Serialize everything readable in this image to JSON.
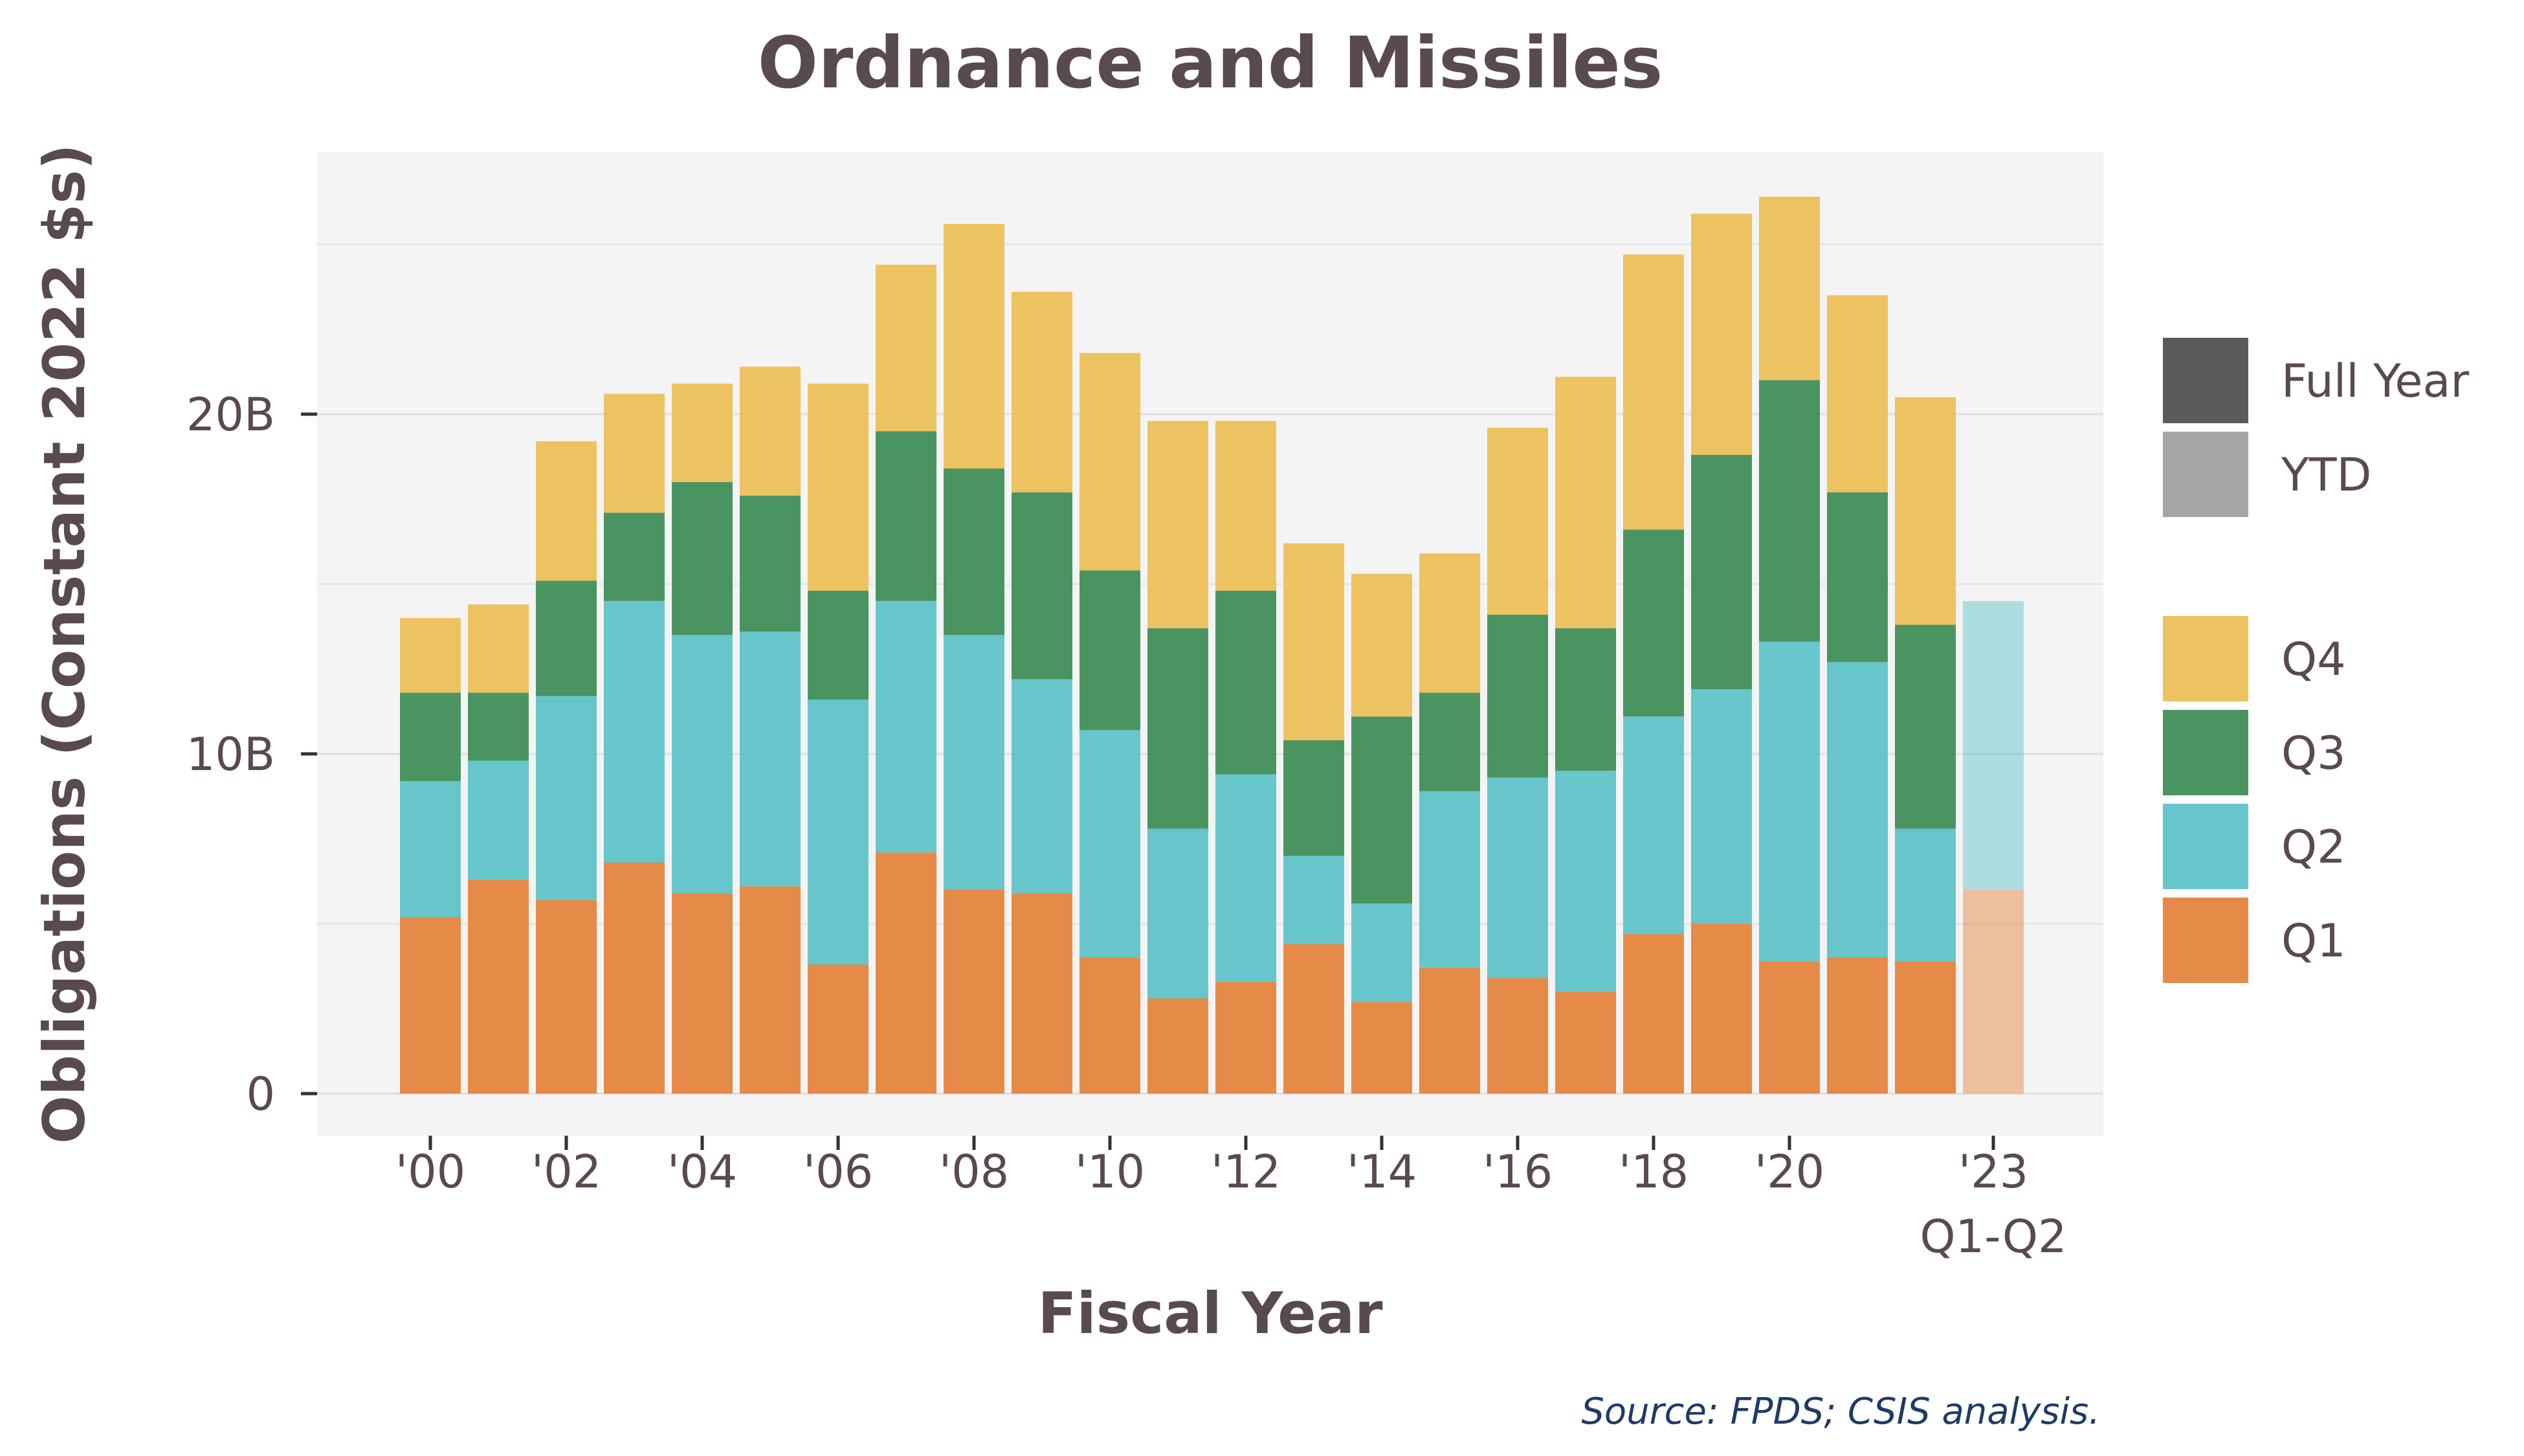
{
  "chart_data": {
    "type": "bar",
    "stacked": true,
    "title": "Ordnance and Missiles",
    "xlabel": "Fiscal Year",
    "ylabel": "Obligations (Constant 2022 $s)",
    "source": "Source: FPDS; CSIS analysis.",
    "ylim": [
      0,
      27.5
    ],
    "y_ticks": [
      0,
      10,
      20
    ],
    "y_tick_labels": [
      "0",
      "10B",
      "20B"
    ],
    "x_tick_labels": [
      {
        "label": "'00",
        "year": 2000
      },
      {
        "label": "'02",
        "year": 2002
      },
      {
        "label": "'04",
        "year": 2004
      },
      {
        "label": "'06",
        "year": 2006
      },
      {
        "label": "'08",
        "year": 2008
      },
      {
        "label": "'10",
        "year": 2010
      },
      {
        "label": "'12",
        "year": 2012
      },
      {
        "label": "'14",
        "year": 2014
      },
      {
        "label": "'16",
        "year": 2016
      },
      {
        "label": "'18",
        "year": 2018
      },
      {
        "label": "'20",
        "year": 2020
      },
      {
        "label": "'23",
        "sublabel": "Q1-Q2",
        "year": 2023
      }
    ],
    "grid": true,
    "legend_position": "right",
    "categories": [
      2000,
      2001,
      2002,
      2003,
      2004,
      2005,
      2006,
      2007,
      2008,
      2009,
      2010,
      2011,
      2012,
      2013,
      2014,
      2015,
      2016,
      2017,
      2018,
      2019,
      2020,
      2021,
      2022,
      2023
    ],
    "period": [
      "Full Year",
      "Full Year",
      "Full Year",
      "Full Year",
      "Full Year",
      "Full Year",
      "Full Year",
      "Full Year",
      "Full Year",
      "Full Year",
      "Full Year",
      "Full Year",
      "Full Year",
      "Full Year",
      "Full Year",
      "Full Year",
      "Full Year",
      "Full Year",
      "Full Year",
      "Full Year",
      "Full Year",
      "Full Year",
      "Full Year",
      "YTD"
    ],
    "series": [
      {
        "name": "Q1",
        "color": "#e58a47",
        "values": [
          5.2,
          6.3,
          5.7,
          6.8,
          5.9,
          6.1,
          3.8,
          7.1,
          6.0,
          5.9,
          4.0,
          2.8,
          3.3,
          4.4,
          2.7,
          3.7,
          3.4,
          3.0,
          4.7,
          5.0,
          3.9,
          4.0,
          3.9,
          6.0
        ]
      },
      {
        "name": "Q2",
        "color": "#67c6cc",
        "values": [
          4.0,
          3.5,
          6.0,
          7.7,
          7.6,
          7.5,
          7.8,
          7.4,
          7.5,
          6.3,
          6.7,
          5.0,
          6.1,
          2.6,
          2.9,
          5.2,
          5.9,
          6.5,
          6.4,
          6.9,
          9.4,
          8.7,
          3.9,
          8.5
        ]
      },
      {
        "name": "Q3",
        "color": "#4a9461",
        "values": [
          2.6,
          2.0,
          3.4,
          2.6,
          4.5,
          4.0,
          3.2,
          5.0,
          4.9,
          5.5,
          4.7,
          5.9,
          5.4,
          3.4,
          5.5,
          2.9,
          4.8,
          4.2,
          5.5,
          6.9,
          7.7,
          5.0,
          6.0,
          0
        ]
      },
      {
        "name": "Q4",
        "color": "#edc261",
        "values": [
          2.2,
          2.6,
          4.1,
          3.5,
          2.9,
          3.8,
          6.1,
          4.9,
          7.2,
          5.9,
          6.4,
          6.1,
          5.0,
          5.8,
          4.2,
          4.1,
          5.5,
          7.4,
          8.1,
          7.1,
          5.4,
          5.8,
          6.7,
          0
        ]
      }
    ],
    "legend_period": [
      {
        "name": "Full Year",
        "color": "#5a5a5a"
      },
      {
        "name": "YTD",
        "color": "#a5a5a5"
      }
    ],
    "legend_quarter_order": [
      "Q4",
      "Q3",
      "Q2",
      "Q1"
    ],
    "ytd_opacity": 0.5
  }
}
